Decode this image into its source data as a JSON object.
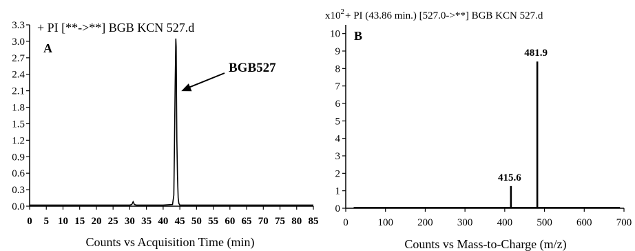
{
  "chart_data": [
    {
      "type": "line",
      "panel_letter": "A",
      "title": "+ PI [**->**] BGB KCN 527.d",
      "xlabel": "Counts vs Acquisition Time (min)",
      "ylabel": "",
      "xlim": [
        0,
        85
      ],
      "ylim": [
        0,
        3.3
      ],
      "xticks": [
        0,
        5,
        10,
        15,
        20,
        25,
        30,
        35,
        40,
        45,
        50,
        55,
        60,
        65,
        70,
        75,
        80,
        85
      ],
      "yticks": [
        0.0,
        0.3,
        0.6,
        0.9,
        1.2,
        1.5,
        1.8,
        2.1,
        2.4,
        2.7,
        3.0,
        3.3
      ],
      "ytick_labels": [
        "0.0",
        "0.3",
        "0.6",
        "0.9",
        "1.2",
        "1.5",
        "1.8",
        "2.1",
        "2.4",
        "2.7",
        "3.0",
        "3.3"
      ],
      "grid": false,
      "series": [
        {
          "x": [
            0,
            5,
            10,
            20,
            30,
            30.6,
            31,
            31.4,
            32,
            40,
            42.8,
            43.2,
            43.4,
            43.6,
            43.8,
            43.9,
            44.0,
            44.1,
            44.3,
            44.5,
            44.7,
            45,
            46,
            50,
            60,
            70,
            80,
            85
          ],
          "y": [
            0.02,
            0.02,
            0.02,
            0.02,
            0.02,
            0.03,
            0.08,
            0.03,
            0.02,
            0.02,
            0.03,
            0.2,
            1.2,
            2.2,
            3.05,
            2.9,
            2.0,
            1.2,
            0.55,
            0.15,
            0.05,
            0.02,
            0.02,
            0.02,
            0.02,
            0.02,
            0.02,
            0.02
          ]
        }
      ],
      "annotations": [
        {
          "text": "BGB527",
          "x": 44.2,
          "y": 2.22
        }
      ]
    },
    {
      "type": "bar",
      "panel_letter": "B",
      "title": "+ PI (43.86 min.) [527.0->**] BGB KCN 527.d",
      "y_scale_prefix": "x10",
      "y_scale_exponent": "2",
      "xlabel": "Counts vs Mass-to-Charge (m/z)",
      "ylabel": "",
      "xlim": [
        0,
        700
      ],
      "ylim": [
        0,
        10.5
      ],
      "xticks": [
        0,
        100,
        200,
        300,
        400,
        500,
        600,
        700
      ],
      "yticks": [
        0,
        1,
        2,
        3,
        4,
        5,
        6,
        7,
        8,
        9,
        10
      ],
      "grid": false,
      "series": [
        {
          "x": [
            415.6,
            481.9
          ],
          "y": [
            1.27,
            8.4
          ]
        }
      ],
      "data_labels": [
        {
          "text": "415.6",
          "x": 415.6,
          "y": 1.27
        },
        {
          "text": "481.9",
          "x": 481.9,
          "y": 8.4
        }
      ],
      "baseline_noise_y": 0.05
    }
  ]
}
